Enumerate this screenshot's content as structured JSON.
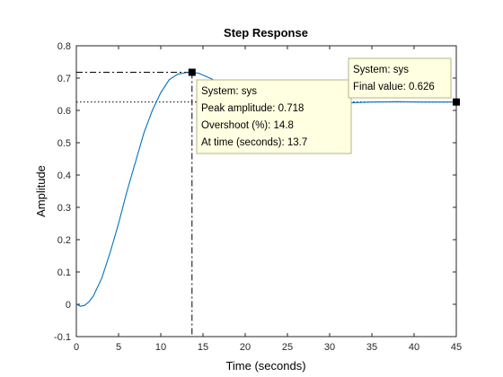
{
  "chart_data": {
    "type": "line",
    "title": "Step Response",
    "xlabel": "Time (seconds)",
    "ylabel": "Amplitude",
    "xlim": [
      0,
      45
    ],
    "ylim": [
      -0.1,
      0.8
    ],
    "xticks": [
      0,
      5,
      10,
      15,
      20,
      25,
      30,
      35,
      40,
      45
    ],
    "yticks": [
      -0.1,
      0,
      0.1,
      0.2,
      0.3,
      0.4,
      0.5,
      0.6,
      0.7,
      0.8
    ],
    "xtick_labels": [
      "0",
      "5",
      "10",
      "15",
      "20",
      "25",
      "30",
      "35",
      "40",
      "45"
    ],
    "ytick_labels": [
      "-0.1",
      "0",
      "0.1",
      "0.2",
      "0.3",
      "0.4",
      "0.5",
      "0.6",
      "0.7",
      "0.8"
    ],
    "grid": false,
    "series": [
      {
        "color": "#0072bd",
        "x": [
          0,
          0.5,
          1,
          1.5,
          2,
          3,
          4,
          5,
          6,
          7,
          8,
          9,
          10,
          11,
          12,
          13,
          13.7,
          14.5,
          16,
          18,
          20,
          22,
          24,
          26,
          28,
          30,
          32,
          35,
          38,
          41,
          45
        ],
        "y": [
          0,
          -0.006,
          -0.003,
          0.008,
          0.025,
          0.08,
          0.16,
          0.25,
          0.35,
          0.44,
          0.53,
          0.6,
          0.655,
          0.695,
          0.712,
          0.717,
          0.718,
          0.715,
          0.698,
          0.668,
          0.643,
          0.626,
          0.615,
          0.613,
          0.616,
          0.62,
          0.623,
          0.626,
          0.627,
          0.626,
          0.626
        ]
      }
    ],
    "peak": {
      "x": 13.7,
      "y": 0.718
    },
    "final": {
      "x": 45,
      "y": 0.626
    },
    "datatips": {
      "peak": {
        "lines": [
          "System: sys",
          "Peak amplitude: 0.718",
          "Overshoot (%): 14.8",
          "At time (seconds): 13.7"
        ]
      },
      "final": {
        "lines": [
          "System: sys",
          "Final value: 0.626"
        ]
      }
    },
    "colors": {
      "line": "#0072bd",
      "datatip_bg": "#ffffe1",
      "datatip_border": "#b4b48c",
      "axis": "#262626"
    }
  }
}
